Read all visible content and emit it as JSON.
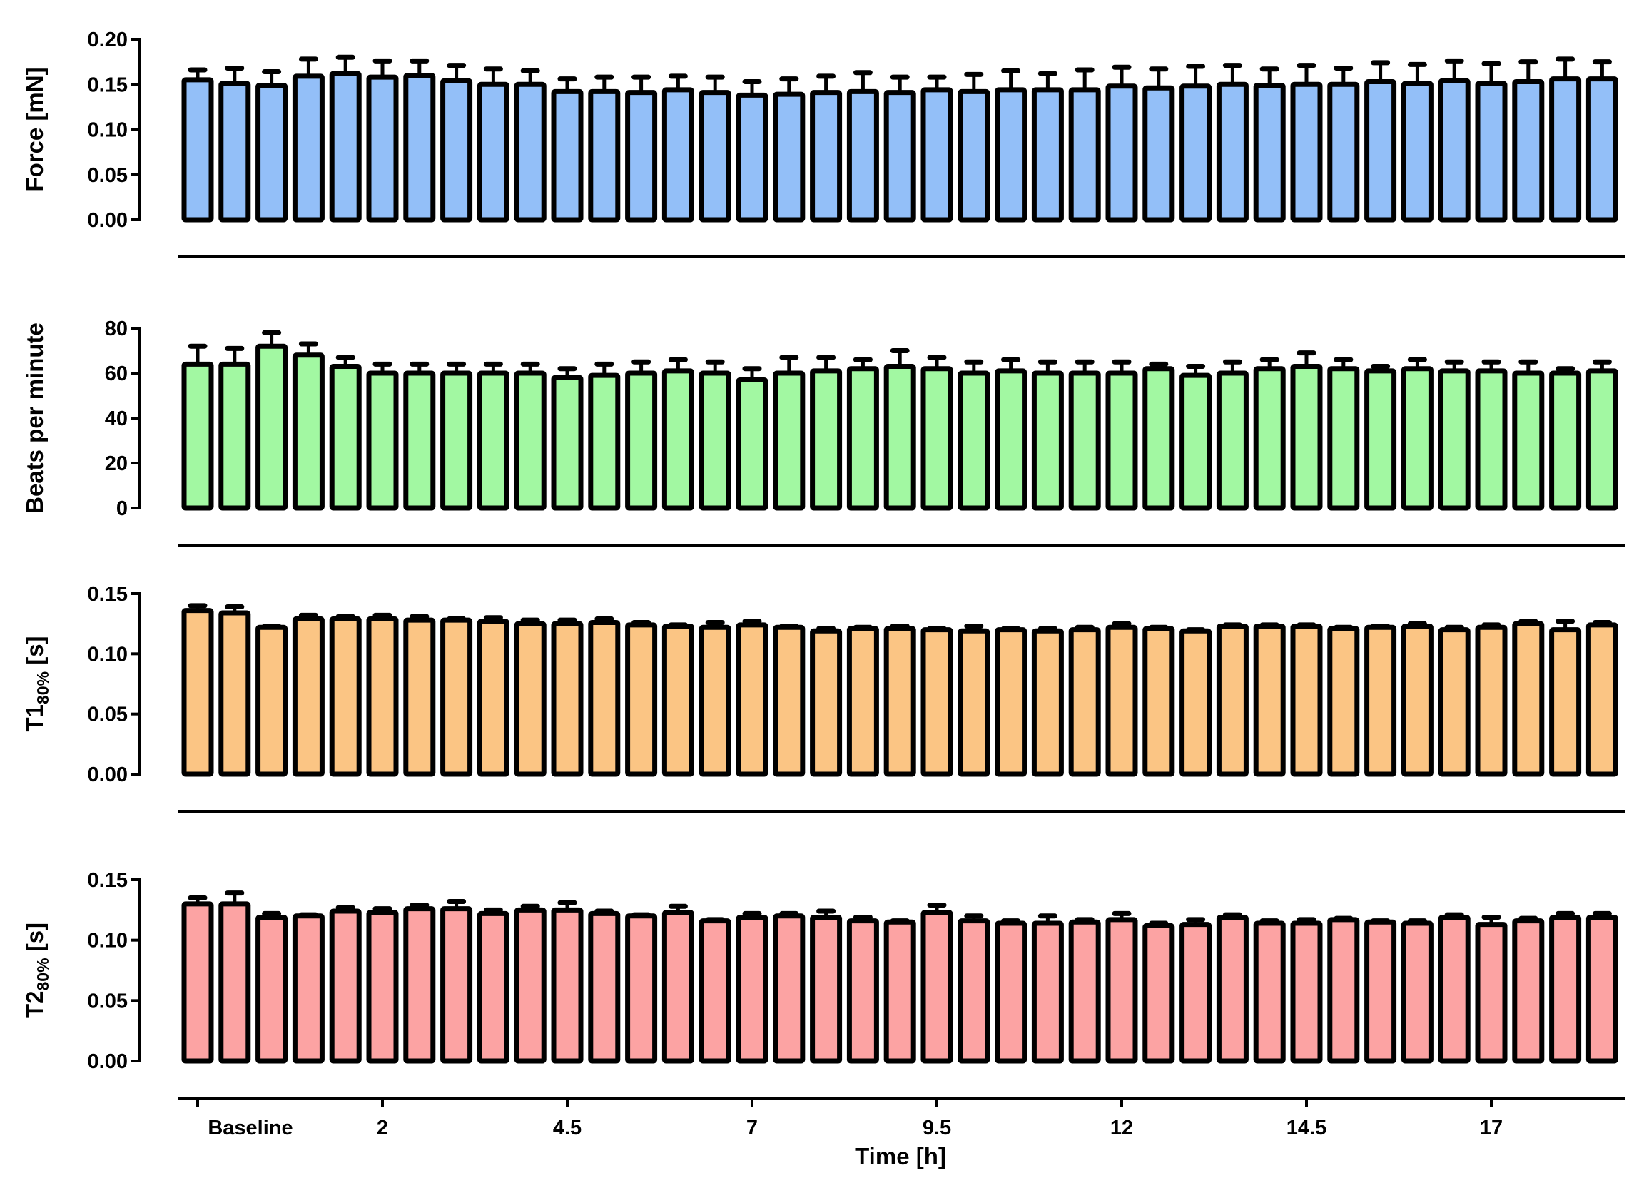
{
  "chart_data": [
    {
      "type": "bar",
      "ylabel": {
        "main": "Force [mN]",
        "sub": "",
        "suffix": ""
      },
      "ylim": [
        0,
        0.2
      ],
      "yticks": [
        "0.00",
        "0.05",
        "0.10",
        "0.15",
        "0.20"
      ],
      "ytick_values": [
        0,
        0.05,
        0.1,
        0.15,
        0.2
      ],
      "color": "#93bff8",
      "values": [
        0.155,
        0.151,
        0.149,
        0.159,
        0.162,
        0.158,
        0.16,
        0.154,
        0.15,
        0.15,
        0.142,
        0.142,
        0.141,
        0.144,
        0.141,
        0.138,
        0.139,
        0.141,
        0.142,
        0.141,
        0.144,
        0.142,
        0.144,
        0.144,
        0.144,
        0.148,
        0.146,
        0.148,
        0.15,
        0.149,
        0.15,
        0.15,
        0.153,
        0.151,
        0.154,
        0.151,
        0.153,
        0.156,
        0.156
      ],
      "errors": [
        0.011,
        0.017,
        0.015,
        0.019,
        0.018,
        0.018,
        0.016,
        0.017,
        0.017,
        0.015,
        0.014,
        0.016,
        0.017,
        0.015,
        0.017,
        0.015,
        0.017,
        0.018,
        0.021,
        0.017,
        0.014,
        0.019,
        0.021,
        0.018,
        0.022,
        0.021,
        0.021,
        0.022,
        0.021,
        0.018,
        0.021,
        0.018,
        0.021,
        0.021,
        0.022,
        0.022,
        0.022,
        0.022,
        0.019
      ]
    },
    {
      "type": "bar",
      "ylabel": {
        "main": "Beats per minute",
        "sub": "",
        "suffix": ""
      },
      "ylim": [
        0,
        80
      ],
      "yticks": [
        "0",
        "20",
        "40",
        "60",
        "80"
      ],
      "ytick_values": [
        0,
        20,
        40,
        60,
        80
      ],
      "color": "#a2f8a2",
      "values": [
        64,
        64,
        72,
        68,
        63,
        60,
        60,
        60,
        60,
        60,
        58,
        59,
        60,
        61,
        60,
        57,
        60,
        61,
        62,
        63,
        62,
        60,
        61,
        60,
        60,
        60,
        62,
        59,
        60,
        62,
        63,
        62,
        61,
        62,
        61,
        61,
        60,
        60,
        61
      ],
      "errors": [
        8,
        7,
        6,
        5,
        4,
        4,
        4,
        4,
        4,
        4,
        4,
        5,
        5,
        5,
        5,
        5,
        7,
        6,
        4,
        7,
        5,
        5,
        5,
        5,
        5,
        5,
        2,
        4,
        5,
        4,
        6,
        4,
        2,
        4,
        4,
        4,
        5,
        2,
        4
      ]
    },
    {
      "type": "bar",
      "ylabel": {
        "main": "T1",
        "sub": "80%",
        "suffix": " [s]"
      },
      "ylim": [
        0,
        0.15
      ],
      "yticks": [
        "0.00",
        "0.05",
        "0.10",
        "0.15"
      ],
      "ytick_values": [
        0,
        0.05,
        0.1,
        0.15
      ],
      "color": "#fbc584",
      "values": [
        0.136,
        0.134,
        0.122,
        0.129,
        0.129,
        0.129,
        0.128,
        0.128,
        0.127,
        0.125,
        0.125,
        0.126,
        0.124,
        0.123,
        0.122,
        0.124,
        0.122,
        0.119,
        0.121,
        0.121,
        0.12,
        0.119,
        0.12,
        0.119,
        0.12,
        0.122,
        0.121,
        0.119,
        0.123,
        0.123,
        0.123,
        0.121,
        0.122,
        0.123,
        0.12,
        0.122,
        0.125,
        0.12,
        0.124
      ],
      "errors": [
        0.004,
        0.005,
        0.001,
        0.003,
        0.002,
        0.003,
        0.003,
        0.001,
        0.003,
        0.003,
        0.003,
        0.003,
        0.002,
        0.001,
        0.004,
        0.003,
        0.001,
        0.002,
        0.001,
        0.002,
        0.001,
        0.004,
        0.001,
        0.002,
        0.002,
        0.003,
        0.001,
        0.001,
        0.001,
        0.001,
        0.001,
        0.001,
        0.001,
        0.002,
        0.002,
        0.002,
        0.002,
        0.007,
        0.002
      ]
    },
    {
      "type": "bar",
      "ylabel": {
        "main": "T2",
        "sub": "80%",
        "suffix": " [s]"
      },
      "ylim": [
        0,
        0.15
      ],
      "yticks": [
        "0.00",
        "0.05",
        "0.10",
        "0.15"
      ],
      "ytick_values": [
        0,
        0.05,
        0.1,
        0.15
      ],
      "color": "#fca3a3",
      "values": [
        0.13,
        0.13,
        0.119,
        0.12,
        0.124,
        0.123,
        0.126,
        0.126,
        0.122,
        0.125,
        0.125,
        0.122,
        0.12,
        0.123,
        0.116,
        0.119,
        0.12,
        0.119,
        0.116,
        0.115,
        0.123,
        0.116,
        0.114,
        0.114,
        0.115,
        0.117,
        0.112,
        0.113,
        0.119,
        0.114,
        0.114,
        0.117,
        0.115,
        0.114,
        0.119,
        0.113,
        0.116,
        0.119,
        0.119
      ],
      "errors": [
        0.005,
        0.009,
        0.003,
        0.001,
        0.003,
        0.003,
        0.003,
        0.006,
        0.003,
        0.003,
        0.006,
        0.002,
        0.001,
        0.005,
        0.001,
        0.003,
        0.002,
        0.005,
        0.003,
        0.001,
        0.006,
        0.004,
        0.002,
        0.006,
        0.002,
        0.005,
        0.002,
        0.004,
        0.002,
        0.002,
        0.003,
        0.001,
        0.001,
        0.002,
        0.002,
        0.006,
        0.002,
        0.003,
        0.003
      ]
    }
  ],
  "x_axis": {
    "label": "Time [h]",
    "tick_labels": [
      "Baseline",
      "2",
      "4.5",
      "7",
      "9.5",
      "12",
      "14.5",
      "17"
    ],
    "tick_bar_indices": [
      0,
      5,
      10,
      15,
      20,
      25,
      30,
      35
    ],
    "bar_count": 39
  }
}
